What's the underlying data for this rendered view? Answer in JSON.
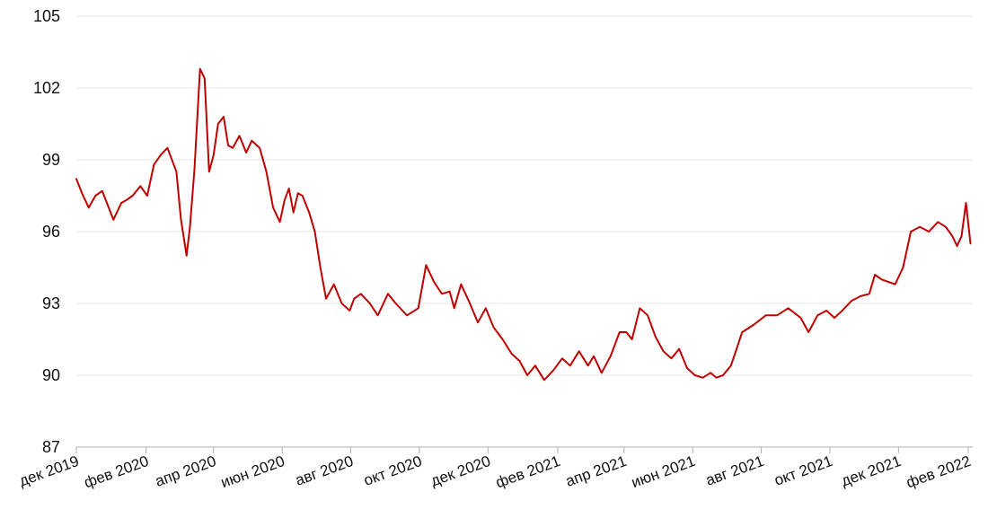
{
  "chart_data": {
    "type": "line",
    "title": "",
    "xlabel": "",
    "ylabel": "",
    "ylim": [
      87,
      105
    ],
    "yticks": [
      87,
      90,
      93,
      96,
      99,
      102,
      105
    ],
    "xlim": [
      "2019-12-01",
      "2022-02-05"
    ],
    "grid": true,
    "line_color": "#c00000",
    "xticks": [
      {
        "date": "2019-12-01",
        "label": "дек 2019"
      },
      {
        "date": "2020-02-01",
        "label": "фев 2020"
      },
      {
        "date": "2020-04-01",
        "label": "апр 2020"
      },
      {
        "date": "2020-06-01",
        "label": "июн 2020"
      },
      {
        "date": "2020-08-01",
        "label": "авг 2020"
      },
      {
        "date": "2020-10-01",
        "label": "окт 2020"
      },
      {
        "date": "2020-12-01",
        "label": "дек 2020"
      },
      {
        "date": "2021-02-01",
        "label": "фев 2021"
      },
      {
        "date": "2021-04-01",
        "label": "апр 2021"
      },
      {
        "date": "2021-06-01",
        "label": "июн 2021"
      },
      {
        "date": "2021-08-01",
        "label": "авг 2021"
      },
      {
        "date": "2021-10-01",
        "label": "окт 2021"
      },
      {
        "date": "2021-12-01",
        "label": "дек 2021"
      },
      {
        "date": "2022-02-01",
        "label": "фев 2022"
      }
    ],
    "series": [
      {
        "x": [
          "2019-12-01",
          "2019-12-06",
          "2019-12-12",
          "2019-12-18",
          "2019-12-24",
          "2020-01-03",
          "2020-01-10",
          "2020-01-14",
          "2020-01-20",
          "2020-01-27",
          "2020-02-02",
          "2020-02-08",
          "2020-02-14",
          "2020-02-20",
          "2020-02-28",
          "2020-03-03",
          "2020-03-08",
          "2020-03-11",
          "2020-03-15",
          "2020-03-20",
          "2020-03-24",
          "2020-03-28",
          "2020-04-01",
          "2020-04-05",
          "2020-04-10",
          "2020-04-14",
          "2020-04-18",
          "2020-04-24",
          "2020-04-30",
          "2020-05-05",
          "2020-05-12",
          "2020-05-18",
          "2020-05-24",
          "2020-05-30",
          "2020-06-03",
          "2020-06-07",
          "2020-06-11",
          "2020-06-15",
          "2020-06-19",
          "2020-06-25",
          "2020-06-30",
          "2020-07-05",
          "2020-07-10",
          "2020-07-17",
          "2020-07-24",
          "2020-07-31",
          "2020-08-04",
          "2020-08-10",
          "2020-08-18",
          "2020-08-25",
          "2020-09-03",
          "2020-09-10",
          "2020-09-20",
          "2020-09-30",
          "2020-10-07",
          "2020-10-14",
          "2020-10-21",
          "2020-10-28",
          "2020-11-01",
          "2020-11-07",
          "2020-11-14",
          "2020-11-22",
          "2020-11-29",
          "2020-12-06",
          "2020-12-14",
          "2020-12-22",
          "2020-12-29",
          "2021-01-05",
          "2021-01-12",
          "2021-01-20",
          "2021-01-28",
          "2021-02-05",
          "2021-02-12",
          "2021-02-20",
          "2021-02-28",
          "2021-03-05",
          "2021-03-12",
          "2021-03-20",
          "2021-03-28",
          "2021-04-03",
          "2021-04-08",
          "2021-04-15",
          "2021-04-22",
          "2021-04-29",
          "2021-05-06",
          "2021-05-13",
          "2021-05-20",
          "2021-05-27",
          "2021-06-03",
          "2021-06-10",
          "2021-06-17",
          "2021-06-22",
          "2021-06-28",
          "2021-07-05",
          "2021-07-15",
          "2021-07-25",
          "2021-08-05",
          "2021-08-15",
          "2021-08-25",
          "2021-09-05",
          "2021-09-12",
          "2021-09-20",
          "2021-09-28",
          "2021-10-05",
          "2021-10-12",
          "2021-10-20",
          "2021-10-28",
          "2021-11-05",
          "2021-11-10",
          "2021-11-16",
          "2021-11-22",
          "2021-11-28",
          "2021-12-05",
          "2021-12-12",
          "2021-12-20",
          "2021-12-28",
          "2022-01-05",
          "2022-01-12",
          "2022-01-18",
          "2022-01-22",
          "2022-01-26",
          "2022-01-30",
          "2022-02-03"
        ],
        "values": [
          98.2,
          97.6,
          97.0,
          97.5,
          97.7,
          96.5,
          97.2,
          97.3,
          97.5,
          97.9,
          97.5,
          98.8,
          99.2,
          99.5,
          98.5,
          96.5,
          95.0,
          96.2,
          98.6,
          102.8,
          102.4,
          98.5,
          99.2,
          100.5,
          100.8,
          99.6,
          99.5,
          100.0,
          99.3,
          99.8,
          99.5,
          98.5,
          97.0,
          96.4,
          97.3,
          97.8,
          96.8,
          97.6,
          97.5,
          96.8,
          96.0,
          94.5,
          93.2,
          93.8,
          93.0,
          92.7,
          93.2,
          93.4,
          93.0,
          92.5,
          93.4,
          93.0,
          92.5,
          92.8,
          94.6,
          93.9,
          93.4,
          93.5,
          92.8,
          93.8,
          93.1,
          92.2,
          92.8,
          92.0,
          91.5,
          90.9,
          90.6,
          90.0,
          90.4,
          89.8,
          90.2,
          90.7,
          90.4,
          91.0,
          90.4,
          90.8,
          90.1,
          90.8,
          91.8,
          91.8,
          91.5,
          92.8,
          92.5,
          91.6,
          91.0,
          90.7,
          91.1,
          90.3,
          90.0,
          89.9,
          90.1,
          89.9,
          90.0,
          90.4,
          91.8,
          92.1,
          92.5,
          92.5,
          92.8,
          92.4,
          91.8,
          92.5,
          92.7,
          92.4,
          92.7,
          93.1,
          93.3,
          93.4,
          94.2,
          94.0,
          93.9,
          93.8,
          94.5,
          96.0,
          96.2,
          96.0,
          96.4,
          96.2,
          95.8,
          95.4,
          95.8,
          97.2,
          95.5
        ]
      }
    ]
  }
}
